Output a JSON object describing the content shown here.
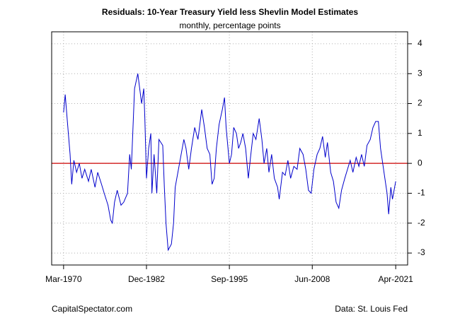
{
  "chart_data": {
    "type": "line",
    "title": "Residuals: 10-Year Treasury Yield less Shevlin Model Estimates",
    "subtitle": "monthly, percentage points",
    "source_left": "CapitalSpectator.com",
    "source_right": "Data: St. Louis Fed",
    "color": "#0000cc",
    "hline": 0,
    "hline_color": "#cc0000",
    "grid": true,
    "xlim": [
      "1968-05",
      "2023-02"
    ],
    "xticks": [
      {
        "value": "1970-03",
        "label": "Mar-1970"
      },
      {
        "value": "1982-12",
        "label": "Dec-1982"
      },
      {
        "value": "1995-09",
        "label": "Sep-1995"
      },
      {
        "value": "2008-06",
        "label": "Jun-2008"
      },
      {
        "value": "2021-04",
        "label": "Apr-2021"
      }
    ],
    "ylim": [
      -3.4,
      4.4
    ],
    "yticks": [
      -3,
      -2,
      -1,
      0,
      1,
      2,
      3,
      4
    ],
    "x": [
      "1970-03",
      "1970-06",
      "1970-10",
      "1971-03",
      "1971-06",
      "1971-10",
      "1972-03",
      "1972-08",
      "1973-01",
      "1973-06",
      "1974-01",
      "1974-06",
      "1975-01",
      "1975-06",
      "1976-01",
      "1976-06",
      "1977-01",
      "1977-06",
      "1977-09",
      "1978-01",
      "1978-06",
      "1979-01",
      "1979-06",
      "1980-01",
      "1980-05",
      "1980-08",
      "1981-02",
      "1981-08",
      "1982-03",
      "1982-07",
      "1982-09",
      "1982-12",
      "1983-04",
      "1983-08",
      "1983-10",
      "1984-02",
      "1984-07",
      "1984-11",
      "1985-06",
      "1985-09",
      "1985-12",
      "1986-04",
      "1986-10",
      "1987-02",
      "1987-05",
      "1987-11",
      "1988-04",
      "1988-09",
      "1989-01",
      "1989-06",
      "1989-11",
      "1990-05",
      "1990-11",
      "1991-06",
      "1991-11",
      "1992-04",
      "1992-09",
      "1993-01",
      "1993-05",
      "1993-09",
      "1994-02",
      "1994-08",
      "1994-12",
      "1995-03",
      "1995-09",
      "1996-01",
      "1996-05",
      "1996-10",
      "1997-02",
      "1997-06",
      "1997-10",
      "1998-03",
      "1998-08",
      "1998-12",
      "1999-05",
      "1999-10",
      "2000-04",
      "2000-09",
      "2001-01",
      "2001-06",
      "2001-10",
      "2002-03",
      "2002-08",
      "2003-02",
      "2003-05",
      "2003-11",
      "2004-04",
      "2004-09",
      "2005-02",
      "2005-08",
      "2006-02",
      "2006-07",
      "2007-01",
      "2007-06",
      "2007-11",
      "2008-04",
      "2008-09",
      "2009-03",
      "2009-08",
      "2010-01",
      "2010-06",
      "2010-10",
      "2011-04",
      "2011-09",
      "2012-02",
      "2012-07",
      "2012-12",
      "2013-06",
      "2013-11",
      "2014-04",
      "2014-09",
      "2015-03",
      "2015-08",
      "2016-01",
      "2016-06",
      "2016-11",
      "2017-05",
      "2017-10",
      "2018-03",
      "2018-08",
      "2018-12",
      "2019-04",
      "2019-08",
      "2019-12",
      "2020-03",
      "2020-07",
      "2020-10",
      "2021-02",
      "2021-04"
    ],
    "values": [
      1.7,
      2.3,
      1.4,
      0.3,
      -0.7,
      0.1,
      -0.3,
      0.0,
      -0.5,
      -0.2,
      -0.6,
      -0.2,
      -0.8,
      -0.3,
      -0.7,
      -1.0,
      -1.4,
      -1.9,
      -2.0,
      -1.3,
      -0.9,
      -1.4,
      -1.3,
      -1.0,
      0.3,
      -0.2,
      2.5,
      3.0,
      2.0,
      2.5,
      1.5,
      -0.5,
      0.5,
      1.0,
      -1.0,
      0.3,
      -1.0,
      0.8,
      0.6,
      -0.8,
      -2.0,
      -2.9,
      -2.7,
      -2.0,
      -0.8,
      -0.2,
      0.3,
      0.8,
      0.5,
      -0.2,
      0.5,
      1.2,
      0.8,
      1.8,
      1.2,
      0.5,
      0.3,
      -0.7,
      -0.5,
      0.5,
      1.3,
      1.8,
      2.2,
      1.2,
      0.0,
      0.3,
      1.2,
      1.0,
      0.5,
      0.7,
      1.0,
      0.5,
      -0.5,
      0.2,
      1.0,
      0.8,
      1.5,
      0.8,
      0.0,
      0.5,
      -0.3,
      0.3,
      -0.5,
      -0.8,
      -1.2,
      -0.3,
      -0.4,
      0.1,
      -0.5,
      -0.1,
      -0.2,
      0.5,
      0.3,
      -0.2,
      -0.9,
      -1.0,
      -0.2,
      0.3,
      0.5,
      0.9,
      0.2,
      0.7,
      -0.3,
      -0.6,
      -1.3,
      -1.5,
      -0.9,
      -0.5,
      -0.2,
      0.1,
      -0.3,
      0.2,
      -0.1,
      0.3,
      -0.1,
      0.6,
      0.8,
      1.2,
      1.4,
      1.4,
      0.5,
      0.0,
      -0.5,
      -1.0,
      -1.7,
      -0.8,
      -1.2,
      -0.8,
      -0.6
    ]
  }
}
